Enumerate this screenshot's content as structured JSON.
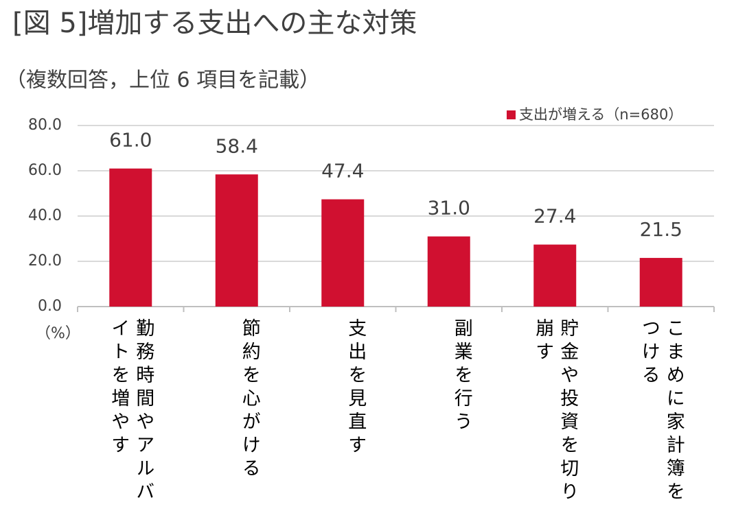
{
  "chart_data": {
    "type": "bar",
    "title": "[図 5]増加する支出への主な対策",
    "subtitle": "（複数回答，上位 6 項目を記載）",
    "y_unit": "（%）",
    "categories": [
      "勤務時間やアルバイトを増やす",
      "節約を心がける",
      "支出を見直す",
      "副業を行う",
      "貯金や投資を切り崩す",
      "こまめに家計簿をつける"
    ],
    "series": [
      {
        "name": "支出が増える（n=680）",
        "color": "#d01030",
        "values": [
          61.0,
          58.4,
          47.4,
          31.0,
          27.4,
          21.5
        ],
        "value_labels": [
          "61.0",
          "58.4",
          "47.4",
          "31.0",
          "27.4",
          "21.5"
        ]
      }
    ],
    "ylim": [
      0,
      80
    ],
    "yticks": [
      {
        "value": 0,
        "label": "0.0"
      },
      {
        "value": 20,
        "label": "20.0"
      },
      {
        "value": 40,
        "label": "40.0"
      },
      {
        "value": 60,
        "label": "60.0"
      },
      {
        "value": 80,
        "label": "80.0"
      }
    ],
    "grid": true,
    "legend": "top-right"
  }
}
